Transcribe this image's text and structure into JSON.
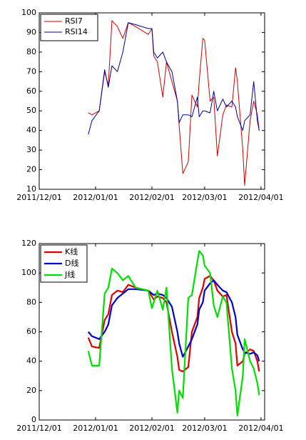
{
  "chart_data": [
    {
      "type": "line",
      "x": [
        "2011/12/28",
        "2011/12/30",
        "2012/01/03",
        "2012/01/06",
        "2012/01/08",
        "2012/01/10",
        "2012/01/13",
        "2012/01/16",
        "2012/01/19",
        "2012/01/23",
        "2012/01/30",
        "2012/02/01",
        "2012/02/02",
        "2012/02/04",
        "2012/02/07",
        "2012/02/09",
        "2012/02/12",
        "2012/02/15",
        "2012/02/16",
        "2012/02/18",
        "2012/02/21",
        "2012/02/23",
        "2012/02/26",
        "2012/02/27",
        "2012/02/29",
        "2012/03/01",
        "2012/03/04",
        "2012/03/06",
        "2012/03/08",
        "2012/03/11",
        "2012/03/13",
        "2012/03/16",
        "2012/03/18",
        "2012/03/19",
        "2012/03/22",
        "2012/03/23",
        "2012/03/26",
        "2012/03/28",
        "2012/03/30",
        "2012/03/31"
      ],
      "series": [
        {
          "name": "RSI7",
          "color": "#cc0000",
          "values": [
            49,
            48,
            50,
            70,
            63,
            96,
            93,
            87,
            95,
            93,
            89,
            92,
            78,
            75,
            57,
            75,
            65,
            55,
            42,
            18,
            24,
            58,
            52,
            65,
            87,
            86,
            55,
            57,
            27,
            48,
            53,
            52,
            72,
            65,
            30,
            12,
            45,
            55,
            48,
            40
          ]
        },
        {
          "name": "RSI14",
          "color": "#000099",
          "values": [
            38,
            45,
            50,
            71,
            62,
            73,
            70,
            80,
            95,
            94,
            92,
            92,
            80,
            77,
            80,
            75,
            70,
            55,
            44,
            48,
            48,
            47,
            57,
            47,
            50,
            50,
            49,
            60,
            50,
            56,
            52,
            55,
            52,
            47,
            40,
            45,
            48,
            65,
            45,
            40
          ]
        }
      ],
      "xlim": [
        "2011/12/01",
        "2012/04/03"
      ],
      "xticks": [
        "2011/12/01",
        "2012/01/01",
        "2012/02/01",
        "2012/03/01",
        "2012/04/01"
      ],
      "ylim": [
        10,
        100
      ],
      "yticks": [
        10,
        20,
        30,
        40,
        50,
        60,
        70,
        80,
        90,
        100
      ],
      "legend": "upper-left"
    },
    {
      "type": "line",
      "x": [
        "2011/12/28",
        "2011/12/30",
        "2012/01/03",
        "2012/01/06",
        "2012/01/08",
        "2012/01/10",
        "2012/01/13",
        "2012/01/16",
        "2012/01/19",
        "2012/01/23",
        "2012/01/30",
        "2012/02/01",
        "2012/02/02",
        "2012/02/04",
        "2012/02/07",
        "2012/02/09",
        "2012/02/12",
        "2012/02/15",
        "2012/02/16",
        "2012/02/18",
        "2012/02/21",
        "2012/02/23",
        "2012/02/26",
        "2012/02/27",
        "2012/02/29",
        "2012/03/01",
        "2012/03/04",
        "2012/03/06",
        "2012/03/08",
        "2012/03/11",
        "2012/03/13",
        "2012/03/16",
        "2012/03/18",
        "2012/03/19",
        "2012/03/22",
        "2012/03/23",
        "2012/03/26",
        "2012/03/28",
        "2012/03/30",
        "2012/03/31"
      ],
      "series": [
        {
          "name": "K线",
          "color": "#dd0000",
          "values": [
            56,
            50,
            49,
            68,
            72,
            85,
            88,
            87,
            92,
            90,
            88,
            84,
            82,
            84,
            83,
            80,
            60,
            43,
            34,
            33,
            36,
            60,
            70,
            83,
            90,
            96,
            98,
            95,
            88,
            84,
            85,
            60,
            52,
            37,
            40,
            45,
            48,
            47,
            40,
            33
          ]
        },
        {
          "name": "D线",
          "color": "#0000cc",
          "values": [
            60,
            57,
            55,
            60,
            65,
            78,
            83,
            86,
            89,
            89,
            88,
            86,
            85,
            86,
            85,
            83,
            77,
            60,
            52,
            43,
            50,
            55,
            65,
            75,
            80,
            88,
            93,
            95,
            92,
            88,
            87,
            80,
            70,
            58,
            48,
            46,
            45,
            46,
            44,
            40
          ]
        },
        {
          "name": "J线",
          "color": "#00dd00",
          "values": [
            47,
            37,
            37,
            86,
            90,
            103,
            100,
            95,
            98,
            90,
            88,
            76,
            80,
            88,
            75,
            90,
            35,
            5,
            20,
            15,
            83,
            85,
            108,
            115,
            112,
            105,
            100,
            78,
            70,
            84,
            80,
            35,
            20,
            3,
            30,
            55,
            40,
            35,
            25,
            17
          ]
        }
      ],
      "xlim": [
        "2011/12/01",
        "2012/04/03"
      ],
      "xticks": [
        "2011/12/01",
        "2012/01/01",
        "2012/02/01",
        "2012/03/01",
        "2012/04/01"
      ],
      "ylim": [
        0,
        120
      ],
      "yticks": [
        0,
        20,
        40,
        60,
        80,
        100,
        120
      ],
      "legend": "upper-left"
    }
  ]
}
